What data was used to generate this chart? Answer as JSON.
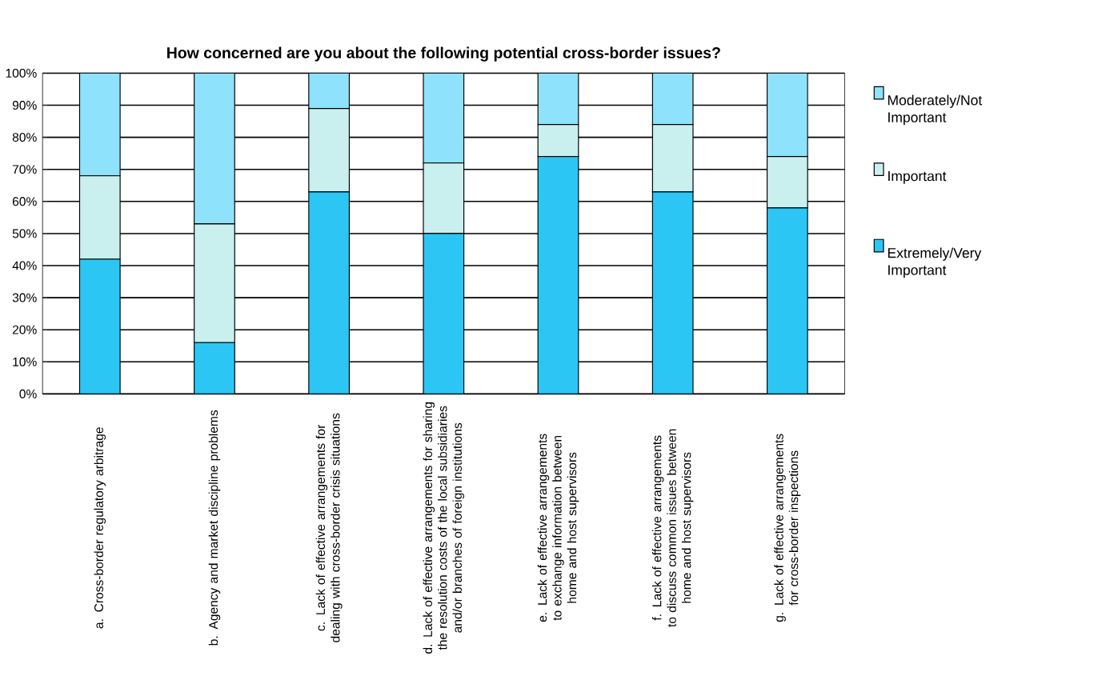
{
  "chart_data": {
    "type": "bar",
    "stacked": true,
    "title": "How concerned are you about the following potential cross-border issues?",
    "categories": [
      "a. Cross-border regulatory arbitrage",
      "b. Agency and market discipline problems",
      "c. Lack of effective arrangements for dealing with cross-border crisis situations",
      "d. Lack of effective arrangements for sharing the resolution costs of the local subsidiaries and/or branches of foreign institutions",
      "e. Lack of effective arrangements to exchange information between home and host supervisors",
      "f. Lack of effective arrangements to discuss common issues between home and host supervisors",
      "g. Lack of effective arrangements for cross-border inspections"
    ],
    "series": [
      {
        "name": "Extremely/Very Important",
        "color": "#2cc6f5",
        "values": [
          42,
          16,
          63,
          50,
          74,
          63,
          58
        ]
      },
      {
        "name": "Important",
        "color": "#c9f0ee",
        "values": [
          26,
          37,
          26,
          22,
          10,
          21,
          16
        ]
      },
      {
        "name": "Moderately/Not Important",
        "color": "#8fe2fb",
        "values": [
          32,
          47,
          11,
          28,
          16,
          16,
          26
        ]
      }
    ],
    "ylim": [
      0,
      100
    ],
    "yticks": [
      {
        "value": 0,
        "label": "0%"
      },
      {
        "value": 10,
        "label": "10%"
      },
      {
        "value": 20,
        "label": "20%"
      },
      {
        "value": 30,
        "label": "30%"
      },
      {
        "value": 40,
        "label": "40%"
      },
      {
        "value": 50,
        "label": "50%"
      },
      {
        "value": 60,
        "label": "60%"
      },
      {
        "value": 70,
        "label": "70%"
      },
      {
        "value": 80,
        "label": "80%"
      },
      {
        "value": 90,
        "label": "90%"
      },
      {
        "value": 100,
        "label": "100%"
      }
    ],
    "grid": "y",
    "legend": "right"
  }
}
